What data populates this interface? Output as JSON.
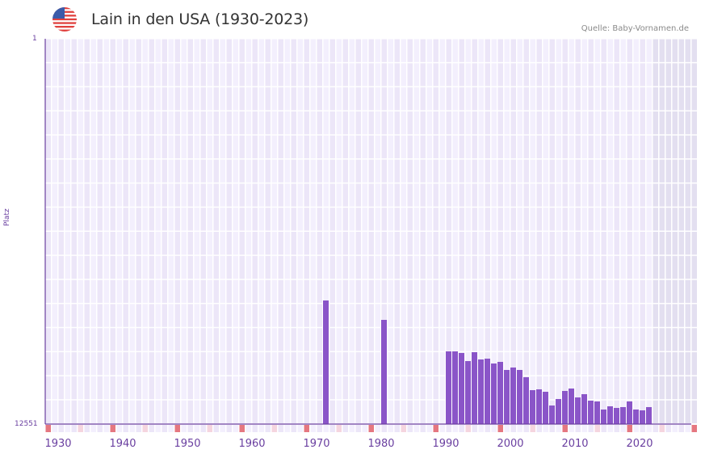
{
  "header": {
    "title": "Lain in den USA (1930-2023)",
    "flag_icon": "us-flag-icon",
    "source": "Quelle: Baby-Vornamen.de"
  },
  "colors": {
    "bar": "#8a55c8",
    "axis": "#6a3fa0",
    "grid_bg_a": "#f3effd",
    "grid_bg_b": "#ece6f8",
    "future_bg": "#e3dff0",
    "decade_marker": "#e57780",
    "half_decade_marker": "#f5d5df"
  },
  "chart_data": {
    "type": "bar",
    "title": "Lain in den USA (1930-2023)",
    "xlabel": "",
    "ylabel": "Platz",
    "y_inverted": true,
    "ylim": [
      1,
      12551
    ],
    "ytick_labels": [
      "1",
      "12551"
    ],
    "xlim": [
      1930,
      2030
    ],
    "xtick_labels": [
      "1930",
      "1940",
      "1950",
      "1960",
      "1970",
      "1980",
      "1990",
      "2000",
      "2010",
      "2020"
    ],
    "grid": true,
    "legend": null,
    "shaded_future_from": 2024,
    "categories": [
      1973,
      1982,
      1992,
      1993,
      1994,
      1995,
      1996,
      1997,
      1998,
      1999,
      2000,
      2001,
      2002,
      2003,
      2004,
      2005,
      2006,
      2007,
      2008,
      2009,
      2010,
      2011,
      2012,
      2013,
      2014,
      2015,
      2016,
      2017,
      2018,
      2019,
      2020,
      2021,
      2022,
      2023
    ],
    "values": [
      8525,
      9157,
      10183,
      10183,
      10236,
      10499,
      10209,
      10446,
      10420,
      10578,
      10525,
      10788,
      10709,
      10788,
      11025,
      11446,
      11420,
      11499,
      11946,
      11735,
      11472,
      11393,
      11683,
      11577,
      11788,
      11814,
      12077,
      11972,
      12025,
      11998,
      11814,
      12077,
      12104,
      11998
    ]
  }
}
